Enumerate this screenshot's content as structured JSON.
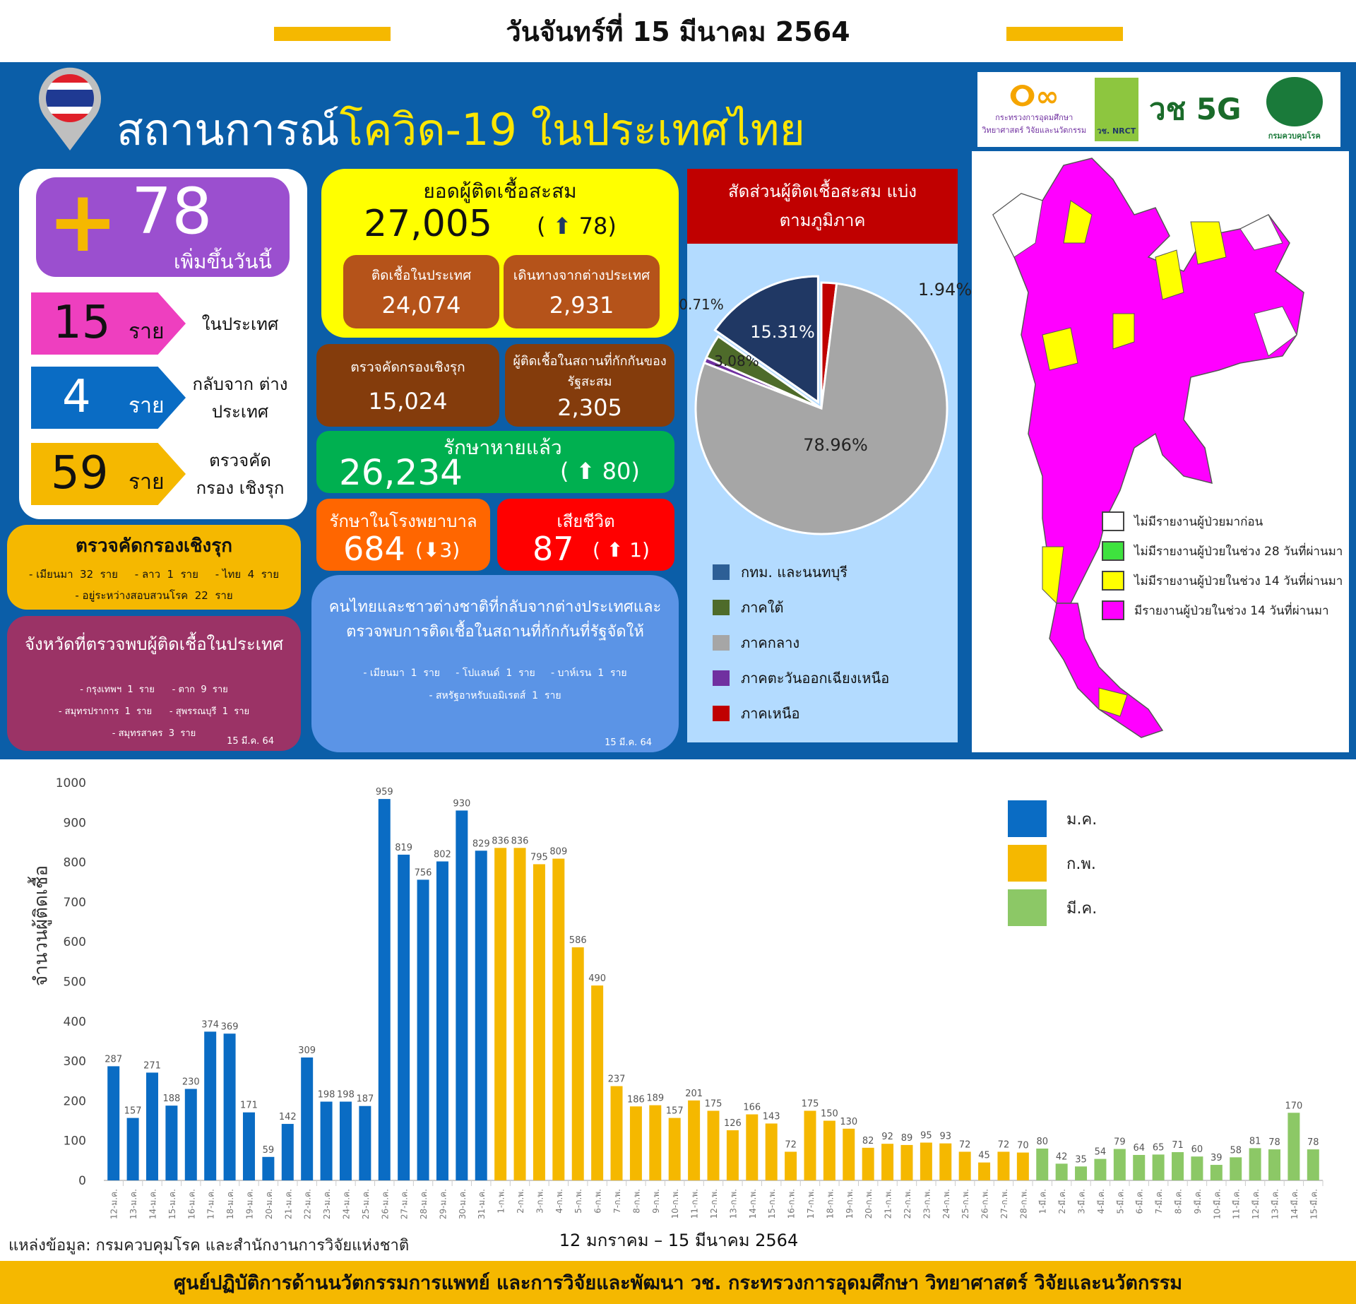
{
  "header": {
    "date": "วันจันทร์ที่ 15 มีนาคม 2564"
  },
  "title": {
    "prefix": "สถานการณ์",
    "highlight": "โควิด-19 ในประเทศไทย"
  },
  "logos": [
    "กระทรวงการอุดมศึกษา วิทยาศาสตร์ วิจัยและนวัตกรรม",
    "วช. NRCT",
    "วช 5G",
    "กรมควบคุมโรค"
  ],
  "today": {
    "plus": "+",
    "count": "78",
    "label": "เพิ่มขึ้นวันนี้"
  },
  "breakdown": [
    {
      "count": "15",
      "unit": "ราย",
      "label": "ในประเทศ",
      "color": "#ee3fbf"
    },
    {
      "count": "4",
      "unit": "ราย",
      "label": "กลับจาก ต่างประเทศ",
      "color": "#0a6cc4"
    },
    {
      "count": "59",
      "unit": "ราย",
      "label": "ตรวจคัดกรอง เชิงรุก",
      "color": "#f5b800"
    }
  ],
  "screening": {
    "title": "ตรวจคัดกรองเชิงรุก",
    "line1": "- เมียนมา  32  ราย     - ลาว  1  ราย     - ไทย  4  ราย",
    "line2": "- อยู่ระหว่างสอบสวนโรค  22  ราย"
  },
  "provinces": {
    "title": "จังหวัดที่ตรวจพบผู้ติดเชื้อในประเทศ",
    "line1": "- กรุงเทพฯ  1  ราย      - ตาก  9  ราย",
    "line2": "- สมุทรปราการ  1  ราย      - สุพรรณบุรี  1  ราย",
    "line3": "- สมุทรสาคร  3  ราย",
    "date": "15 มี.ค. 64"
  },
  "cumulative": {
    "title": "ยอดผู้ติดเชื้อสะสม",
    "total": "27,005",
    "delta": "78",
    "local_label": "ติดเชื้อในประเทศ",
    "local": "24,074",
    "abroad_label": "เดินทางจากต่างประเทศ",
    "abroad": "2,931"
  },
  "active_screening": {
    "label": "ตรวจคัดกรองเชิงรุก",
    "value": "15,024"
  },
  "quarantine": {
    "label": "ผู้ติดเชื้อในสถานที่กักกันของรัฐสะสม",
    "value": "2,305"
  },
  "recovered": {
    "label": "รักษาหายแล้ว",
    "value": "26,234",
    "delta": "80"
  },
  "hospital": {
    "label": "รักษาในโรงพยาบาล",
    "value": "684",
    "delta": "3"
  },
  "deaths": {
    "label": "เสียชีวิต",
    "value": "87",
    "delta": "1"
  },
  "returnees": {
    "title": "คนไทยและชาวต่างชาติที่กลับจากต่างประเทศและตรวจพบการติดเชื้อในสถานที่กักกันที่รัฐจัดให้",
    "line1": "- เมียนมา  1  ราย     - โปแลนด์  1  ราย     - บาห์เรน  1  ราย",
    "line2": "- สหรัฐอาหรับเอมิเรตส์  1  ราย",
    "date": "15 มี.ค. 64"
  },
  "pie": {
    "title": "สัดส่วนผู้ติดเชื้อสะสม แบ่งตามภูมิภาค",
    "slices": [
      {
        "name": "ภาคเหนือ",
        "value": 1.94,
        "label": "1.94%",
        "color": "#c00000"
      },
      {
        "name": "ภาคกลาง",
        "value": 78.96,
        "label": "78.96%",
        "color": "#a6a6a6"
      },
      {
        "name": "ภาคตะวันออกเฉียงเหนือ",
        "value": 0.71,
        "label": "0.71%",
        "color": "#7030a0"
      },
      {
        "name": "ภาคใต้",
        "value": 3.08,
        "label": "3.08%",
        "color": "#4e6b2a"
      },
      {
        "name": "กทม. และนนทบุรี",
        "value": 15.31,
        "label": "15.31%",
        "color": "#203864"
      }
    ],
    "legend": [
      {
        "name": "กทม. และนนทบุรี",
        "color": "#2d5f96"
      },
      {
        "name": "ภาคใต้",
        "color": "#4e6b2a"
      },
      {
        "name": "ภาคกลาง",
        "color": "#a6a6a6"
      },
      {
        "name": "ภาคตะวันออกเฉียงเหนือ",
        "color": "#7030a0"
      },
      {
        "name": "ภาคเหนือ",
        "color": "#c00000"
      }
    ]
  },
  "map_legend": [
    {
      "label": "ไม่มีรายงานผู้ป่วยมาก่อน",
      "color": "#ffffff"
    },
    {
      "label": "ไม่มีรายงานผู้ป่วยในช่วง 28 วันที่ผ่านมา",
      "color": "#3ee23e"
    },
    {
      "label": "ไม่มีรายงานผู้ป่วยในช่วง 14 วันที่ผ่านมา",
      "color": "#ffff00"
    },
    {
      "label": "มีรายงานผู้ป่วยในช่วง 14 วันที่ผ่านมา",
      "color": "#ff00ff"
    }
  ],
  "chart_data": {
    "type": "bar",
    "title": "",
    "xlabel": "12 มกราคม – 15 มีนาคม 2564",
    "ylabel": "จำนวนผู้ติดเชื้อ",
    "ylim": [
      0,
      1000
    ],
    "yticks": [
      0,
      100,
      200,
      300,
      400,
      500,
      600,
      700,
      800,
      900,
      1000
    ],
    "legend_position": "top-right",
    "series": [
      {
        "name": "ม.ค.",
        "color": "#0a6cc4",
        "abbr": "ม.ค.",
        "start_day": 12,
        "values": [
          287,
          157,
          271,
          188,
          230,
          374,
          369,
          171,
          59,
          142,
          309,
          198,
          198,
          187,
          959,
          819,
          756,
          802,
          930,
          829
        ]
      },
      {
        "name": "ก.พ.",
        "color": "#f5b800",
        "abbr": "ก.พ.",
        "start_day": 1,
        "values": [
          836,
          836,
          795,
          809,
          586,
          490,
          237,
          186,
          189,
          157,
          201,
          175,
          126,
          166,
          143,
          72,
          175,
          150,
          130,
          82,
          92,
          89,
          95,
          93,
          72,
          45,
          72,
          70
        ]
      },
      {
        "name": "มี.ค.",
        "color": "#8cc866",
        "abbr": "มี.ค.",
        "start_day": 1,
        "values": [
          80,
          42,
          35,
          54,
          79,
          64,
          65,
          71,
          60,
          39,
          58,
          81,
          78,
          170,
          78
        ]
      }
    ]
  },
  "source": "แหล่งข้อมูล: กรมควบคุมโรค และสำนักงานการวิจัยแห่งชาติ",
  "footer": "ศูนย์ปฏิบัติการด้านนวัตกรรมการแพทย์ และการวิจัยและพัฒนา  วช.   กระทรวงการอุดมศึกษา วิทยาศาสตร์ วิจัยและนวัตกรรม"
}
